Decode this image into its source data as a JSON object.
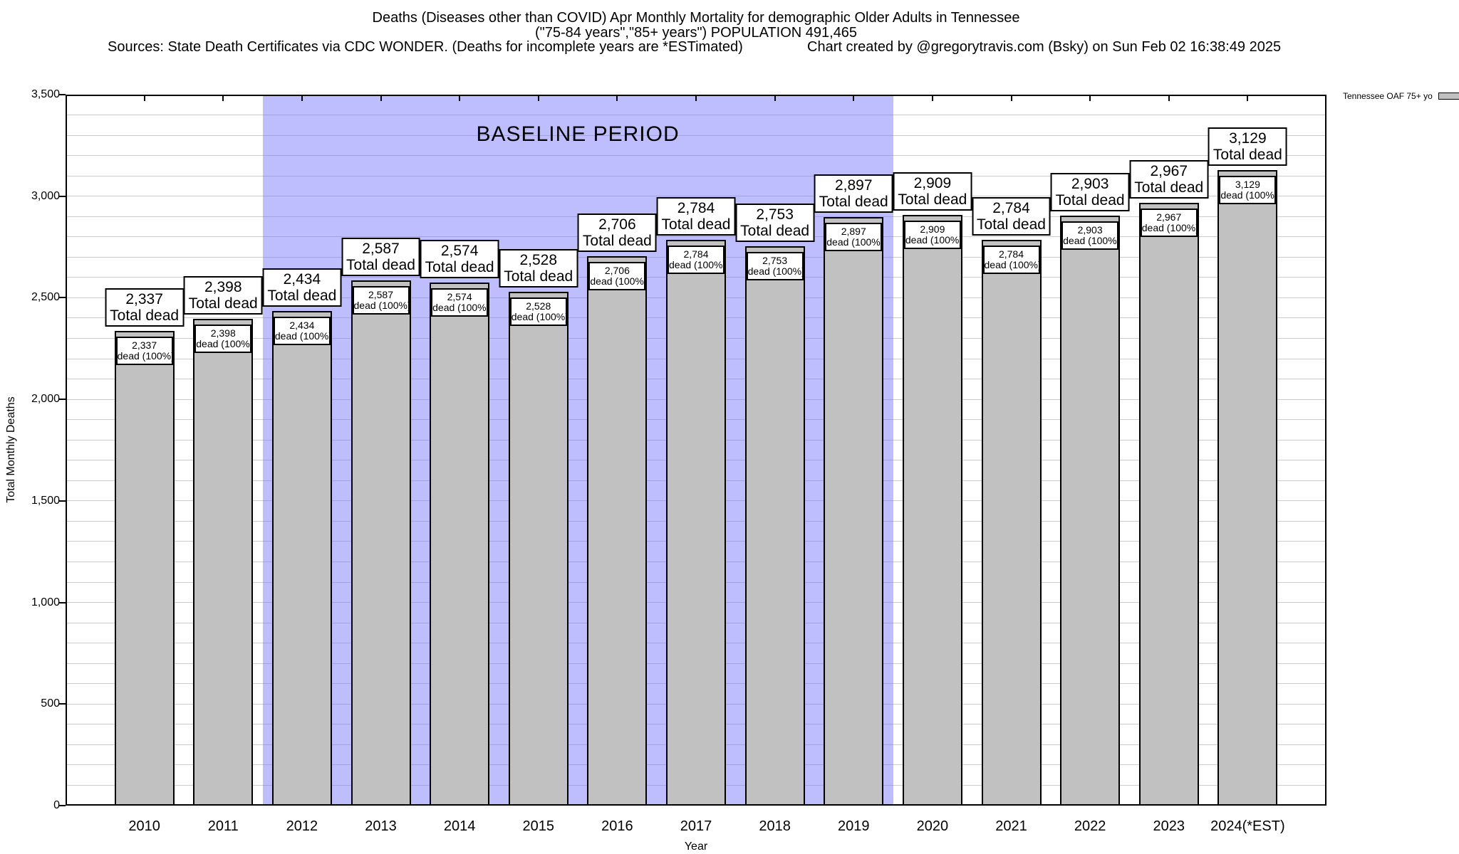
{
  "header": {
    "title_line1": "Deaths (Diseases other than COVID) Apr Monthly Mortality for demographic Older Adults in Tennessee",
    "title_line2": "(\"75-84 years\",\"85+ years\") POPULATION 491,465",
    "sources": "Sources: State Death Certificates via CDC WONDER. (Deaths for incomplete years are *ESTimated)",
    "credit": "Chart created by @gregorytravis.com (Bsky) on Sun Feb 02 16:38:49 2025"
  },
  "legend": {
    "label": "Tennessee OAF 75+ yo",
    "swatch_color": "#c1c1c1"
  },
  "chart_data": {
    "type": "bar",
    "title": "Deaths (Diseases other than COVID) Apr Monthly Mortality for demographic Older Adults in Tennessee",
    "xlabel": "Year",
    "ylabel": "Total Monthly Deaths",
    "ylim": [
      0,
      3500
    ],
    "ytick_interval": 500,
    "minor_grid_interval": 100,
    "grid": "on",
    "legend_position": "top-right",
    "categories": [
      "2010",
      "2011",
      "2012",
      "2013",
      "2014",
      "2015",
      "2016",
      "2017",
      "2018",
      "2019",
      "2020",
      "2021",
      "2022",
      "2023",
      "2024(*EST)"
    ],
    "values": [
      2337,
      2398,
      2434,
      2587,
      2574,
      2528,
      2706,
      2784,
      2753,
      2897,
      2909,
      2784,
      2903,
      2967,
      3129
    ],
    "series_name": "Tennessee OAF 75+ yo",
    "bar_color": "#c1c1c1",
    "bar_border_color": "#000000",
    "bar_label_top_suffix": "Total dead",
    "bar_label_inner_suffix": "dead (100%)",
    "baseline_region": {
      "label": "BASELINE PERIOD",
      "from_category": "2012",
      "to_category": "2019",
      "color": "rgba(119,119,255,0.48)"
    }
  }
}
